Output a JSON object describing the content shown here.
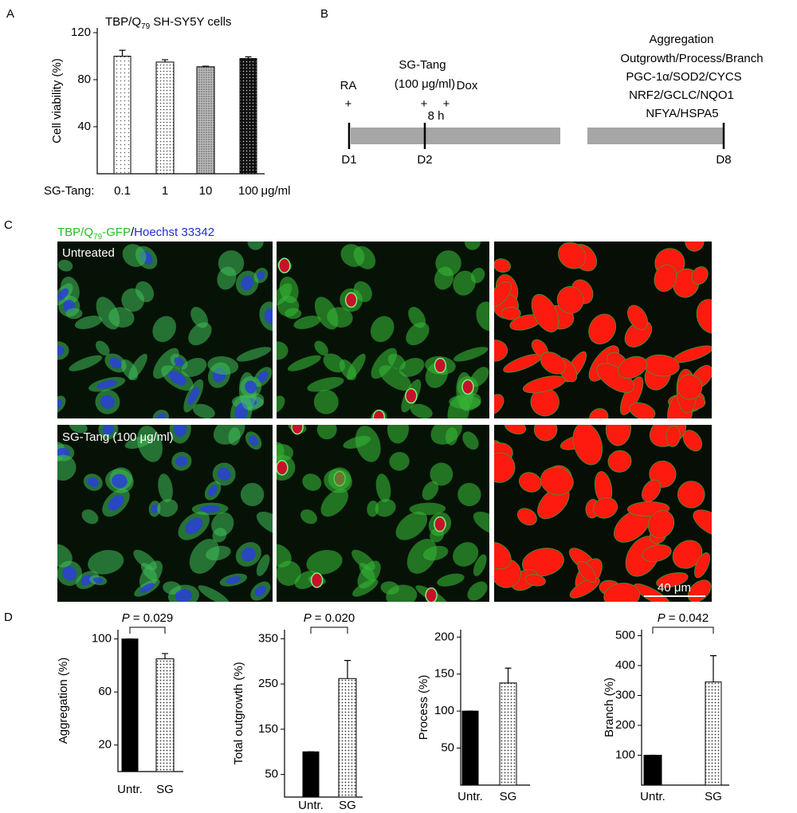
{
  "panel_labels": [
    "A",
    "B",
    "C",
    "D"
  ],
  "chart_data": [
    {
      "type": "bar",
      "title": [
        "TBP/Q",
        "79",
        " SH-SY5Y cells"
      ],
      "y_label": "Cell viability (%)",
      "x_label": "SG-Tang:",
      "x_unit": "μg/ml",
      "categories": [
        "0.1",
        "1",
        "10",
        "100"
      ],
      "values": [
        100,
        95,
        91,
        98
      ],
      "errors": [
        5,
        2,
        0.5,
        1.5
      ],
      "ylim": [
        0,
        120
      ],
      "yticks": [
        40,
        80,
        120
      ]
    },
    {
      "type": "bar",
      "y_label": "Aggregation (%)",
      "categories": [
        "Untr.",
        "SG"
      ],
      "values": [
        100,
        85
      ],
      "errors": [
        0,
        4
      ],
      "ylim": [
        0,
        107
      ],
      "yticks": [
        20,
        60,
        100
      ],
      "annotation": {
        "p": "P",
        "text": "= 0.029"
      }
    },
    {
      "type": "bar",
      "y_label": "Total outgrowth (%)",
      "categories": [
        "Untr.",
        "SG"
      ],
      "values": [
        100,
        262
      ],
      "errors": [
        0,
        40
      ],
      "ylim": [
        0,
        370
      ],
      "yticks": [
        50,
        150,
        250,
        350
      ],
      "annotation": {
        "p": "P",
        "text": "= 0.020"
      }
    },
    {
      "type": "bar",
      "y_label": "Process (%)",
      "categories": [
        "Untr.",
        "SG"
      ],
      "values": [
        100,
        138
      ],
      "errors": [
        0,
        20
      ],
      "ylim": [
        0,
        210
      ],
      "yticks": [
        50,
        100,
        150,
        200
      ]
    },
    {
      "type": "bar",
      "y_label": "Branch (%)",
      "categories": [
        "Untr.",
        "SG"
      ],
      "values": [
        100,
        345
      ],
      "errors": [
        0,
        88
      ],
      "ylim": [
        0,
        520
      ],
      "yticks": [
        100,
        200,
        300,
        400,
        500
      ],
      "annotation": {
        "p": "P",
        "text": "= 0.042"
      }
    }
  ],
  "timeline": {
    "ra": "RA",
    "treatment": "SG-Tang",
    "dose": "(100 μg/ml)",
    "dox": "Dox",
    "plus": [
      "+",
      "+",
      "+"
    ],
    "interval": "8 h",
    "days": [
      "D1",
      "D2",
      "D8"
    ],
    "readouts": [
      "Aggregation",
      "Outgrowth/Process/Branch",
      "PGC-1α/SOD2/CYCS",
      "NRF2/GCLC/NQO1",
      "NFYA/HSPA5"
    ]
  },
  "micrographs": {
    "stain": [
      "TBP/Q",
      "79",
      "-GFP",
      "/",
      "Hoechst 33342"
    ],
    "rows": [
      "Untreated",
      "SG-Tang (100 μg/ml)"
    ],
    "scale_bar": "40 μm"
  }
}
